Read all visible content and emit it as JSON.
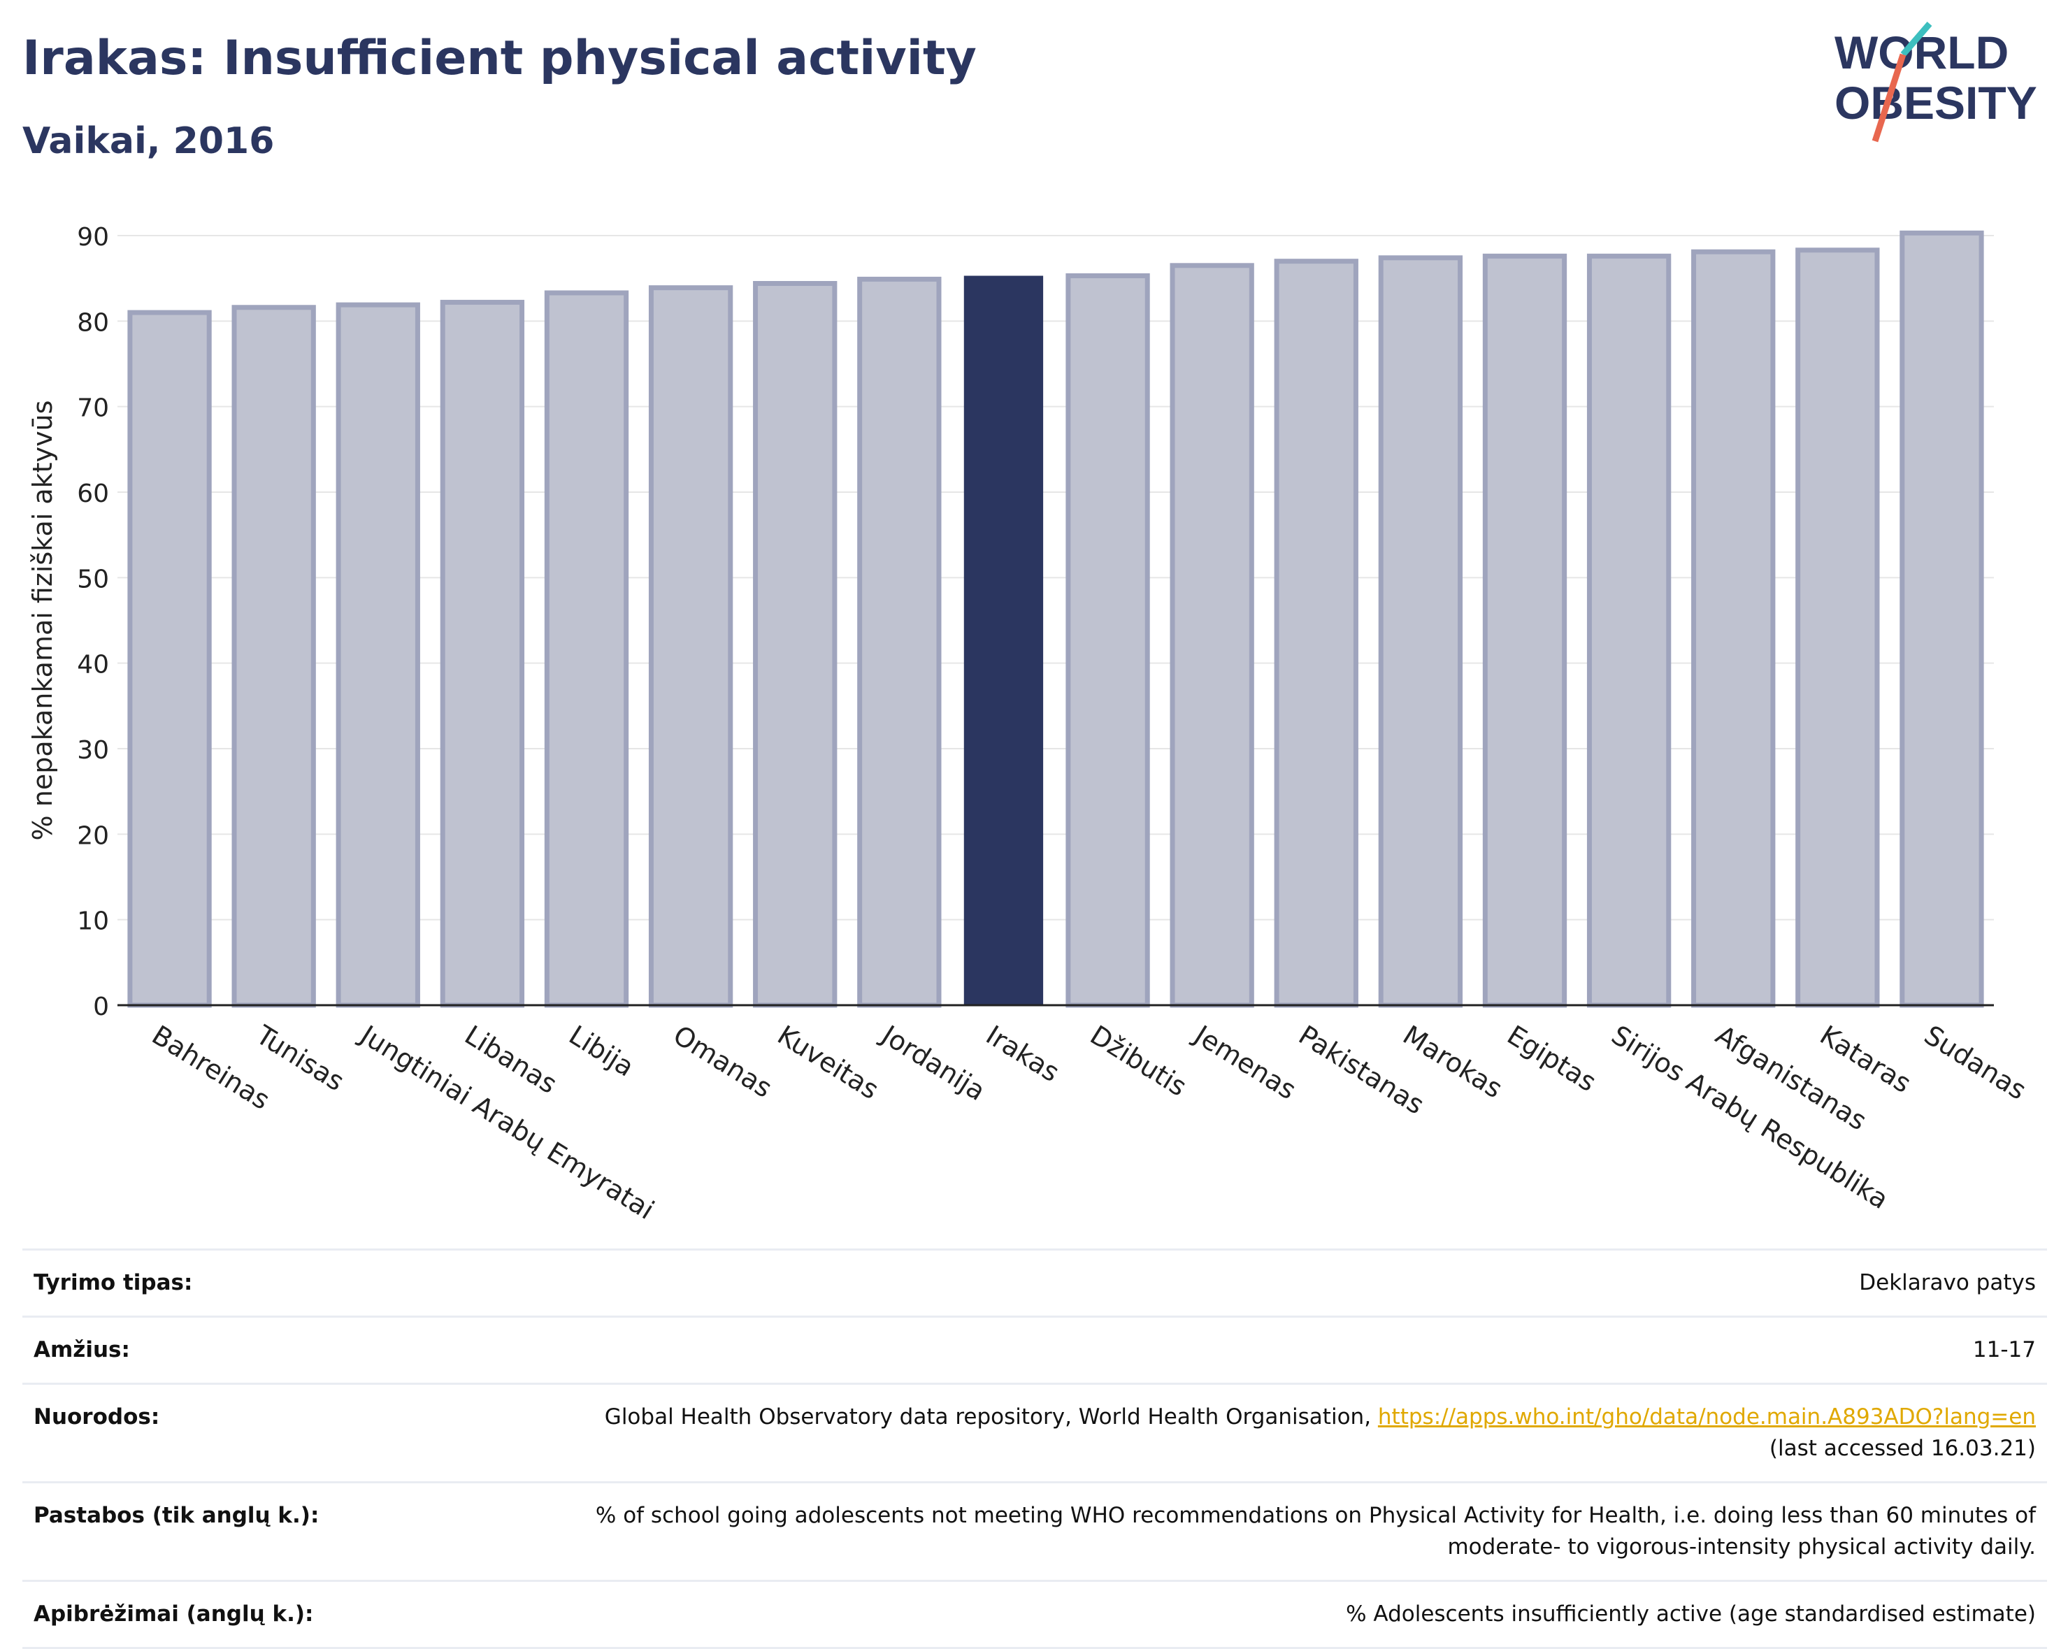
{
  "header": {
    "title": "Irakas: Insufficient physical activity",
    "subtitle": "Vaikai, 2016"
  },
  "logo": {
    "line1": "WORLD",
    "line2": "OBESITY",
    "colors": {
      "text": "#2b3660",
      "slash_red": "#e8674f",
      "slash_teal": "#3dbfbf"
    }
  },
  "colors": {
    "highlight_bar": "#2b3660",
    "other_bar_fill": "#bfc2d0",
    "other_bar_stroke": "#9fa4bd",
    "grid": "#e6e6e6",
    "axis": "#222222",
    "link": "#e0a800"
  },
  "chart_data": {
    "type": "bar",
    "ylabel": "% nepakankamai fiziškai aktyvūs",
    "ylim": [
      0,
      90
    ],
    "yticks": [
      0,
      10,
      20,
      30,
      40,
      50,
      60,
      70,
      80,
      90
    ],
    "grid": true,
    "highlight": "Irakas",
    "categories": [
      "Bahreinas",
      "Tunisas",
      "Jungtiniai Arabų Emyratai",
      "Libanas",
      "Libija",
      "Omanas",
      "Kuveitas",
      "Jordanija",
      "Irakas",
      "Džibutis",
      "Jemenas",
      "Pakistanas",
      "Marokas",
      "Egiptas",
      "Sirijos Arabų Respublika",
      "Afganistanas",
      "Kataras",
      "Sudanas"
    ],
    "values": [
      81.0,
      81.6,
      81.9,
      82.2,
      83.3,
      83.9,
      84.4,
      84.9,
      85.3,
      85.3,
      86.5,
      87.0,
      87.4,
      87.6,
      87.6,
      88.1,
      88.3,
      90.3
    ]
  },
  "meta": [
    {
      "key": "Tyrimo tipas:",
      "value": "Deklaravo patys"
    },
    {
      "key": "Amžius:",
      "value": "11-17"
    },
    {
      "key": "Nuorodos:",
      "value": "Global Health Observatory data repository, World Health Organisation, ",
      "link": "https://apps.who.int/gho/data/node.main.A893ADO?lang=en",
      "value2": "(last accessed 16.03.21)"
    },
    {
      "key": "Pastabos (tik anglų k.):",
      "value": "% of school going adolescents not meeting WHO recommendations on Physical Activity for Health, i.e. doing less than 60 minutes of",
      "value2": "moderate- to vigorous-intensity physical activity daily."
    },
    {
      "key": "Apibrėžimai (anglų k.):",
      "value": "% Adolescents insufficiently active (age standardised estimate)"
    }
  ]
}
